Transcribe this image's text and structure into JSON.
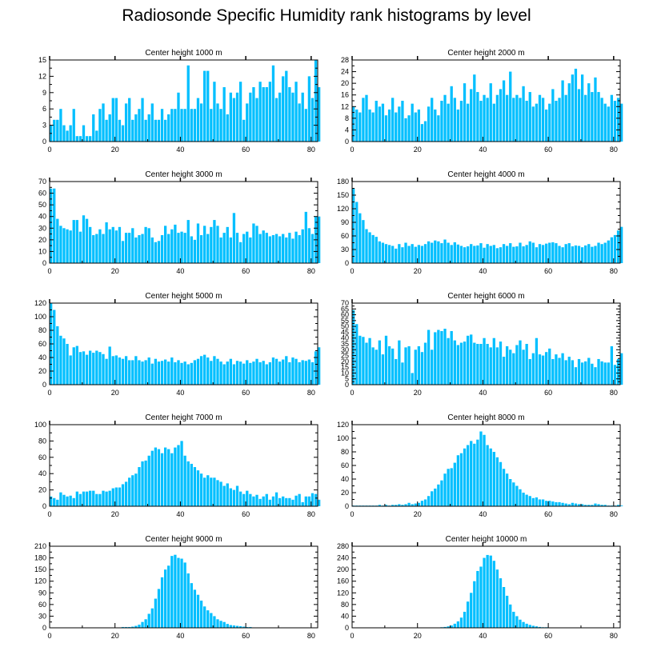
{
  "title": "Radiosonde Specific Humidity rank histograms by level",
  "colors": {
    "bar": "#00BFFF",
    "bar_edge": "#ffffff",
    "axis": "#000000"
  },
  "chart_data": [
    {
      "type": "bar",
      "title": "Center height 1000 m",
      "xlim": [
        0,
        82
      ],
      "ylim": [
        0,
        15
      ],
      "yticks": [
        0,
        3,
        6,
        9,
        12,
        15
      ],
      "xticks": [
        0,
        20,
        40,
        60,
        80
      ],
      "values": [
        3,
        4,
        4,
        6,
        3,
        2,
        3,
        6,
        1,
        1,
        3,
        1,
        1,
        5,
        2,
        6,
        7,
        4,
        5,
        8,
        8,
        4,
        3,
        7,
        8,
        4,
        5,
        6,
        8,
        4,
        5,
        7,
        4,
        4,
        6,
        4,
        5,
        6,
        6,
        9,
        6,
        6,
        14,
        6,
        6,
        8,
        7,
        13,
        13,
        6,
        11,
        7,
        6,
        10,
        5,
        9,
        8,
        9,
        11,
        4,
        7,
        9,
        10,
        8,
        11,
        10,
        10,
        11,
        14,
        8,
        9,
        12,
        13,
        10,
        9,
        11,
        7,
        9,
        6,
        12,
        8,
        15,
        10
      ]
    },
    {
      "type": "bar",
      "title": "Center height 2000 m",
      "xlim": [
        0,
        82
      ],
      "ylim": [
        0,
        28
      ],
      "yticks": [
        0,
        4,
        8,
        12,
        16,
        20,
        24,
        28
      ],
      "xticks": [
        0,
        20,
        40,
        60,
        80
      ],
      "values": [
        12,
        11,
        10,
        15,
        16,
        11,
        10,
        14,
        12,
        13,
        9,
        11,
        15,
        10,
        12,
        14,
        8,
        9,
        13,
        10,
        11,
        6,
        7,
        12,
        15,
        11,
        9,
        14,
        16,
        13,
        19,
        15,
        11,
        14,
        20,
        13,
        18,
        23,
        17,
        14,
        16,
        15,
        20,
        13,
        16,
        18,
        21,
        16,
        24,
        15,
        16,
        15,
        19,
        14,
        17,
        12,
        13,
        16,
        15,
        11,
        13,
        18,
        14,
        15,
        21,
        16,
        20,
        23,
        25,
        18,
        23,
        16,
        20,
        17,
        22,
        17,
        15,
        13,
        12,
        16,
        14,
        15,
        13
      ]
    },
    {
      "type": "bar",
      "title": "Center height 3000 m",
      "xlim": [
        0,
        82
      ],
      "ylim": [
        0,
        70
      ],
      "yticks": [
        0,
        10,
        20,
        30,
        40,
        50,
        60,
        70
      ],
      "xticks": [
        0,
        20,
        40,
        60,
        80
      ],
      "values": [
        64,
        64,
        38,
        32,
        30,
        29,
        28,
        37,
        37,
        27,
        41,
        38,
        31,
        24,
        25,
        29,
        25,
        35,
        29,
        31,
        28,
        31,
        19,
        26,
        26,
        30,
        22,
        24,
        25,
        31,
        30,
        22,
        18,
        19,
        24,
        32,
        25,
        29,
        33,
        26,
        27,
        26,
        37,
        23,
        20,
        34,
        24,
        32,
        25,
        31,
        37,
        32,
        22,
        26,
        31,
        22,
        43,
        26,
        18,
        25,
        27,
        22,
        34,
        32,
        25,
        28,
        26,
        23,
        24,
        25,
        23,
        25,
        22,
        26,
        21,
        27,
        24,
        29,
        44,
        30,
        25,
        40,
        40
      ]
    },
    {
      "type": "bar",
      "title": "Center height 4000 m",
      "xlim": [
        0,
        82
      ],
      "ylim": [
        0,
        180
      ],
      "yticks": [
        0,
        30,
        60,
        90,
        120,
        150,
        180
      ],
      "xticks": [
        0,
        20,
        40,
        60,
        80
      ],
      "values": [
        165,
        135,
        110,
        95,
        75,
        68,
        62,
        58,
        48,
        45,
        42,
        40,
        38,
        32,
        42,
        35,
        45,
        38,
        42,
        36,
        40,
        38,
        42,
        48,
        45,
        50,
        48,
        44,
        52,
        45,
        40,
        46,
        41,
        38,
        35,
        37,
        42,
        38,
        39,
        44,
        34,
        42,
        38,
        40,
        33,
        35,
        42,
        38,
        44,
        36,
        37,
        45,
        37,
        40,
        48,
        45,
        35,
        42,
        40,
        43,
        45,
        46,
        44,
        38,
        35,
        42,
        44,
        37,
        39,
        38,
        35,
        39,
        42,
        36,
        38,
        45,
        42,
        45,
        50,
        57,
        62,
        72,
        80
      ]
    },
    {
      "type": "bar",
      "title": "Center height 5000 m",
      "xlim": [
        0,
        82
      ],
      "ylim": [
        0,
        120
      ],
      "yticks": [
        0,
        20,
        40,
        60,
        80,
        100,
        120
      ],
      "xticks": [
        0,
        20,
        40,
        60,
        80
      ],
      "values": [
        120,
        110,
        86,
        72,
        68,
        60,
        43,
        55,
        57,
        48,
        49,
        44,
        50,
        47,
        50,
        48,
        45,
        38,
        56,
        42,
        43,
        40,
        38,
        42,
        36,
        36,
        42,
        36,
        34,
        36,
        40,
        31,
        38,
        34,
        35,
        37,
        34,
        40,
        33,
        36,
        32,
        34,
        30,
        32,
        36,
        38,
        42,
        44,
        40,
        35,
        42,
        38,
        34,
        30,
        34,
        38,
        30,
        35,
        34,
        31,
        36,
        32,
        34,
        38,
        33,
        35,
        30,
        33,
        40,
        38,
        34,
        37,
        42,
        33,
        40,
        38,
        33,
        36,
        35,
        37,
        33,
        49,
        55
      ]
    },
    {
      "type": "bar",
      "title": "Center height 6000 m",
      "xlim": [
        0,
        82
      ],
      "ylim": [
        0,
        70
      ],
      "yticks": [
        0,
        5,
        10,
        15,
        20,
        25,
        30,
        35,
        40,
        45,
        50,
        55,
        60,
        65,
        70
      ],
      "xticks": [
        0,
        20,
        40,
        60,
        80
      ],
      "values": [
        64,
        52,
        42,
        41,
        36,
        40,
        32,
        30,
        38,
        26,
        42,
        33,
        31,
        22,
        38,
        19,
        32,
        33,
        10,
        30,
        33,
        28,
        36,
        47,
        30,
        45,
        47,
        46,
        48,
        40,
        46,
        38,
        34,
        36,
        37,
        42,
        43,
        36,
        35,
        35,
        40,
        35,
        32,
        40,
        32,
        37,
        24,
        33,
        30,
        27,
        34,
        38,
        30,
        35,
        22,
        27,
        40,
        26,
        25,
        28,
        31,
        22,
        26,
        23,
        27,
        21,
        24,
        21,
        15,
        22,
        19,
        20,
        23,
        18,
        15,
        22,
        20,
        19,
        19,
        33,
        17,
        22,
        27
      ]
    },
    {
      "type": "bar",
      "title": "Center height 7000 m",
      "xlim": [
        0,
        82
      ],
      "ylim": [
        0,
        100
      ],
      "yticks": [
        0,
        20,
        40,
        60,
        80,
        100
      ],
      "xticks": [
        0,
        20,
        40,
        60,
        80
      ],
      "values": [
        12,
        10,
        8,
        17,
        14,
        12,
        13,
        10,
        18,
        15,
        18,
        18,
        19,
        19,
        15,
        15,
        19,
        18,
        19,
        22,
        23,
        23,
        27,
        30,
        35,
        38,
        40,
        48,
        55,
        56,
        62,
        68,
        72,
        70,
        65,
        72,
        70,
        65,
        72,
        75,
        80,
        62,
        55,
        52,
        48,
        44,
        40,
        35,
        38,
        35,
        35,
        32,
        30,
        25,
        28,
        22,
        20,
        25,
        18,
        15,
        19,
        15,
        12,
        14,
        9,
        12,
        15,
        8,
        12,
        17,
        10,
        12,
        10,
        10,
        8,
        13,
        15,
        5,
        12,
        12,
        16,
        15,
        8
      ]
    },
    {
      "type": "bar",
      "title": "Center height 8000 m",
      "xlim": [
        0,
        82
      ],
      "ylim": [
        0,
        120
      ],
      "yticks": [
        0,
        20,
        40,
        60,
        80,
        100,
        120
      ],
      "xticks": [
        0,
        20,
        40,
        60,
        80
      ],
      "values": [
        1,
        1,
        1,
        1,
        1,
        1,
        1,
        1,
        2,
        1,
        2,
        1,
        2,
        2,
        3,
        2,
        3,
        5,
        3,
        4,
        5,
        8,
        10,
        15,
        22,
        26,
        32,
        38,
        48,
        55,
        56,
        64,
        75,
        78,
        85,
        90,
        96,
        92,
        98,
        110,
        105,
        90,
        85,
        80,
        72,
        65,
        55,
        48,
        40,
        35,
        30,
        25,
        20,
        17,
        15,
        12,
        13,
        10,
        10,
        8,
        8,
        7,
        6,
        6,
        5,
        4,
        3,
        5,
        4,
        3,
        3,
        2,
        2,
        2,
        4,
        3,
        2,
        2,
        1,
        1,
        1,
        2,
        1
      ]
    },
    {
      "type": "bar",
      "title": "Center height 9000 m",
      "xlim": [
        0,
        82
      ],
      "ylim": [
        0,
        210
      ],
      "yticks": [
        0,
        30,
        60,
        90,
        120,
        150,
        180,
        210
      ],
      "xticks": [
        0,
        20,
        40,
        60,
        80
      ],
      "values": [
        0,
        0,
        0,
        0,
        0,
        0,
        0,
        0,
        0,
        0,
        0,
        0,
        0,
        0,
        0,
        0,
        0,
        0,
        0,
        0,
        1,
        1,
        2,
        2,
        2,
        3,
        5,
        8,
        15,
        22,
        36,
        50,
        75,
        100,
        130,
        150,
        160,
        185,
        188,
        180,
        178,
        168,
        140,
        115,
        98,
        85,
        70,
        55,
        45,
        38,
        30,
        22,
        18,
        15,
        10,
        7,
        6,
        5,
        4,
        3,
        2,
        2,
        1,
        1,
        1,
        1,
        0,
        1,
        0,
        0,
        0,
        0,
        0,
        0,
        0,
        0,
        0,
        0,
        0,
        0,
        0,
        0,
        0
      ]
    },
    {
      "type": "bar",
      "title": "Center height 10000 m",
      "xlim": [
        0,
        82
      ],
      "ylim": [
        0,
        280
      ],
      "yticks": [
        0,
        40,
        80,
        120,
        160,
        200,
        240,
        280
      ],
      "xticks": [
        0,
        20,
        40,
        60,
        80
      ],
      "values": [
        0,
        0,
        0,
        0,
        0,
        0,
        0,
        0,
        0,
        0,
        0,
        0,
        0,
        0,
        0,
        0,
        0,
        0,
        0,
        0,
        0,
        0,
        0,
        0,
        0,
        0,
        1,
        2,
        3,
        5,
        8,
        14,
        22,
        35,
        55,
        90,
        120,
        160,
        195,
        210,
        240,
        250,
        248,
        230,
        200,
        170,
        140,
        110,
        80,
        55,
        40,
        28,
        20,
        14,
        10,
        7,
        5,
        3,
        2,
        2,
        1,
        1,
        1,
        0,
        1,
        0,
        0,
        0,
        0,
        0,
        0,
        0,
        0,
        0,
        0,
        0,
        0,
        0,
        0,
        0,
        0,
        0,
        0
      ]
    }
  ]
}
